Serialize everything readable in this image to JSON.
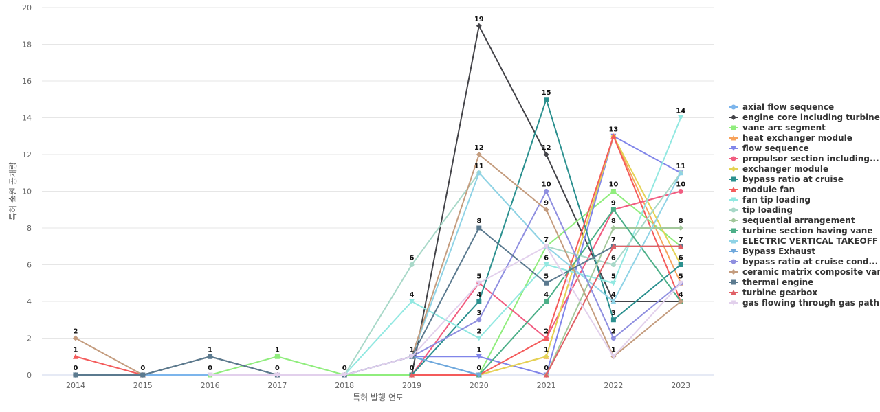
{
  "chart_data": {
    "type": "line",
    "title": "",
    "xlabel": "특허 발행 연도",
    "ylabel": "특허 출원 공개량",
    "x": [
      "2014",
      "2015",
      "2016",
      "2017",
      "2018",
      "2019",
      "2020",
      "2021",
      "2022",
      "2023"
    ],
    "ylim": [
      0,
      20
    ],
    "yticks": [
      "0",
      "2",
      "4",
      "6",
      "8",
      "10",
      "12",
      "14",
      "16",
      "18",
      "20"
    ],
    "grid": true,
    "legend_position": "right",
    "series": [
      {
        "name": "axial flow sequence",
        "color": "#7cb5ec",
        "marker": "circle",
        "values": [
          0,
          0,
          0,
          0,
          0,
          1,
          0,
          null,
          null,
          null
        ]
      },
      {
        "name": "engine core including turbine",
        "color": "#434348",
        "marker": "diamond",
        "values": [
          0,
          0,
          1,
          0,
          0,
          0,
          19,
          12,
          4,
          4
        ]
      },
      {
        "name": "vane arc segment",
        "color": "#90ed7d",
        "marker": "square",
        "values": [
          null,
          null,
          0,
          1,
          0,
          0,
          0,
          7,
          10,
          7
        ]
      },
      {
        "name": "heat exchanger module",
        "color": "#f7a35c",
        "marker": "triangle",
        "values": [
          null,
          null,
          null,
          null,
          null,
          null,
          0,
          1,
          13,
          5
        ]
      },
      {
        "name": "flow sequence",
        "color": "#8085e9",
        "marker": "triangle-down",
        "values": [
          null,
          null,
          null,
          null,
          0,
          1,
          1,
          0,
          13,
          11
        ]
      },
      {
        "name": "propulsor section including...",
        "color": "#f15c80",
        "marker": "circle",
        "values": [
          null,
          null,
          null,
          null,
          null,
          0,
          5,
          2,
          9,
          10
        ]
      },
      {
        "name": "exchanger module",
        "color": "#e4d354",
        "marker": "diamond",
        "values": [
          null,
          null,
          null,
          null,
          null,
          null,
          0,
          1,
          13,
          6
        ]
      },
      {
        "name": "bypass ratio at cruise",
        "color": "#2b908f",
        "marker": "square",
        "values": [
          null,
          null,
          null,
          null,
          null,
          0,
          4,
          15,
          3,
          6
        ]
      },
      {
        "name": "module fan",
        "color": "#f45b5b",
        "marker": "triangle",
        "values": [
          1,
          0,
          null,
          null,
          null,
          0,
          0,
          2,
          13,
          4
        ]
      },
      {
        "name": "fan tip loading",
        "color": "#91e8e1",
        "marker": "triangle-down",
        "values": [
          null,
          null,
          null,
          null,
          0,
          4,
          2,
          6,
          5,
          14
        ]
      },
      {
        "name": "tip loading",
        "color": "#a8d8c8",
        "marker": "circle",
        "values": [
          null,
          null,
          null,
          null,
          0,
          6,
          11,
          7,
          6,
          11
        ]
      },
      {
        "name": "sequential arrangement",
        "color": "#a3c89b",
        "marker": "diamond",
        "values": [
          null,
          null,
          null,
          null,
          null,
          null,
          null,
          0,
          8,
          8
        ]
      },
      {
        "name": "turbine section having vane",
        "color": "#4caf88",
        "marker": "square",
        "values": [
          null,
          null,
          null,
          null,
          null,
          null,
          0,
          4,
          9,
          4
        ]
      },
      {
        "name": "ELECTRIC VERTICAL TAKEOFF",
        "color": "#8fd3e6",
        "marker": "triangle",
        "values": [
          null,
          null,
          null,
          null,
          null,
          1,
          11,
          7,
          4,
          11
        ]
      },
      {
        "name": "Bypass Exhaust",
        "color": "#6fa8dc",
        "marker": "triangle-down",
        "values": [
          0,
          null,
          null,
          null,
          null,
          1,
          0,
          null,
          null,
          null
        ]
      },
      {
        "name": "bypass ratio at cruise cond...",
        "color": "#8f8fe0",
        "marker": "circle",
        "values": [
          null,
          null,
          null,
          null,
          0,
          1,
          3,
          10,
          2,
          5
        ]
      },
      {
        "name": "ceramic matrix composite vane",
        "color": "#c49c7e",
        "marker": "diamond",
        "values": [
          2,
          0,
          null,
          null,
          null,
          1,
          12,
          9,
          1,
          4
        ]
      },
      {
        "name": "thermal engine",
        "color": "#5b7a8f",
        "marker": "square",
        "values": [
          0,
          0,
          1,
          0,
          0,
          1,
          8,
          5,
          7,
          7
        ]
      },
      {
        "name": "turbine gearbox",
        "color": "#e06066",
        "marker": "triangle",
        "values": [
          null,
          null,
          null,
          null,
          null,
          0,
          null,
          0,
          7,
          7
        ]
      },
      {
        "name": "gas flowing through gas path",
        "color": "#e2d0ec",
        "marker": "triangle-down",
        "values": [
          null,
          null,
          0,
          0,
          0,
          1,
          5,
          7,
          1,
          5
        ]
      }
    ],
    "data_labels": [
      {
        "x": "2014",
        "text": "2",
        "y": 2
      },
      {
        "x": "2014",
        "text": "1",
        "y": 1
      },
      {
        "x": "2014",
        "text": "0",
        "y": 0
      },
      {
        "x": "2015",
        "text": "0",
        "y": 0
      },
      {
        "x": "2016",
        "text": "1",
        "y": 1
      },
      {
        "x": "2016",
        "text": "0",
        "y": 0
      },
      {
        "x": "2017",
        "text": "1",
        "y": 1
      },
      {
        "x": "2017",
        "text": "0",
        "y": 0
      },
      {
        "x": "2018",
        "text": "0",
        "y": 0
      },
      {
        "x": "2019",
        "text": "6",
        "y": 6
      },
      {
        "x": "2019",
        "text": "4",
        "y": 4
      },
      {
        "x": "2019",
        "text": "1",
        "y": 1
      },
      {
        "x": "2019",
        "text": "0",
        "y": 0
      },
      {
        "x": "2020",
        "text": "19",
        "y": 19
      },
      {
        "x": "2020",
        "text": "12",
        "y": 12
      },
      {
        "x": "2020",
        "text": "11",
        "y": 11
      },
      {
        "x": "2020",
        "text": "8",
        "y": 8
      },
      {
        "x": "2020",
        "text": "5",
        "y": 5
      },
      {
        "x": "2020",
        "text": "4",
        "y": 4
      },
      {
        "x": "2020",
        "text": "3",
        "y": 3
      },
      {
        "x": "2020",
        "text": "2",
        "y": 2
      },
      {
        "x": "2020",
        "text": "1",
        "y": 1
      },
      {
        "x": "2020",
        "text": "0",
        "y": 0
      },
      {
        "x": "2021",
        "text": "15",
        "y": 15
      },
      {
        "x": "2021",
        "text": "12",
        "y": 12
      },
      {
        "x": "2021",
        "text": "10",
        "y": 10
      },
      {
        "x": "2021",
        "text": "9",
        "y": 9
      },
      {
        "x": "2021",
        "text": "7",
        "y": 7
      },
      {
        "x": "2021",
        "text": "6",
        "y": 6
      },
      {
        "x": "2021",
        "text": "5",
        "y": 5
      },
      {
        "x": "2021",
        "text": "4",
        "y": 4
      },
      {
        "x": "2021",
        "text": "2",
        "y": 2
      },
      {
        "x": "2021",
        "text": "1",
        "y": 1
      },
      {
        "x": "2021",
        "text": "0",
        "y": 0
      },
      {
        "x": "2022",
        "text": "13",
        "y": 13
      },
      {
        "x": "2022",
        "text": "10",
        "y": 10
      },
      {
        "x": "2022",
        "text": "9",
        "y": 9
      },
      {
        "x": "2022",
        "text": "8",
        "y": 8
      },
      {
        "x": "2022",
        "text": "7",
        "y": 7
      },
      {
        "x": "2022",
        "text": "6",
        "y": 6
      },
      {
        "x": "2022",
        "text": "5",
        "y": 5
      },
      {
        "x": "2022",
        "text": "4",
        "y": 4
      },
      {
        "x": "2022",
        "text": "3",
        "y": 3
      },
      {
        "x": "2022",
        "text": "2",
        "y": 2
      },
      {
        "x": "2022",
        "text": "1",
        "y": 1
      },
      {
        "x": "2023",
        "text": "14",
        "y": 14
      },
      {
        "x": "2023",
        "text": "11",
        "y": 11
      },
      {
        "x": "2023",
        "text": "10",
        "y": 10
      },
      {
        "x": "2023",
        "text": "8",
        "y": 8
      },
      {
        "x": "2023",
        "text": "7",
        "y": 7
      },
      {
        "x": "2023",
        "text": "6",
        "y": 6
      },
      {
        "x": "2023",
        "text": "5",
        "y": 5
      },
      {
        "x": "2023",
        "text": "4",
        "y": 4
      }
    ]
  }
}
